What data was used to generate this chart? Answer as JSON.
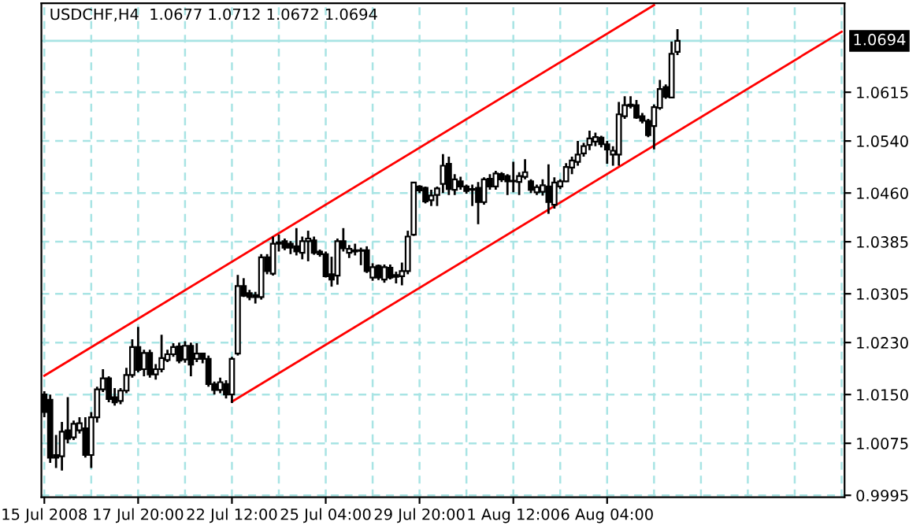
{
  "chart_data": {
    "type": "candlestick",
    "title": "USDCHF,H4  1.0677 1.0712 1.0672 1.0694",
    "categories": [
      "15 Jul 2008",
      null,
      null,
      null,
      null,
      null,
      null,
      null,
      null,
      null,
      null,
      null,
      null,
      null,
      null,
      null,
      "17 Jul 20:00",
      null,
      null,
      null,
      null,
      null,
      null,
      null,
      null,
      null,
      null,
      null,
      null,
      null,
      null,
      null,
      "22 Jul 12:00",
      null,
      null,
      null,
      null,
      null,
      null,
      null,
      null,
      null,
      null,
      null,
      null,
      null,
      null,
      null,
      "25 Jul 04:00",
      null,
      null,
      null,
      null,
      null,
      null,
      null,
      null,
      null,
      null,
      null,
      null,
      null,
      null,
      null,
      "29 Jul 20:00",
      null,
      null,
      null,
      null,
      null,
      null,
      null,
      null,
      null,
      null,
      null,
      null,
      null,
      null,
      null,
      "1 Aug 12:00",
      null,
      null,
      null,
      null,
      null,
      null,
      null,
      null,
      null,
      null,
      null,
      null,
      null,
      null,
      null,
      "6 Aug 04:00",
      null,
      null,
      null,
      null,
      null,
      null,
      null,
      null,
      null,
      null,
      null,
      null,
      null,
      null,
      null,
      null,
      null,
      null,
      null,
      null,
      null,
      null,
      null,
      null,
      null,
      null,
      null,
      null,
      null,
      null,
      null,
      null,
      null,
      null,
      null,
      null,
      null,
      null,
      null,
      null
    ],
    "color": "#000000",
    "ohlc": [
      [
        1.015,
        1.0155,
        1.0115,
        1.0123
      ],
      [
        1.0142,
        1.015,
        1.0045,
        1.0053
      ],
      [
        1.0057,
        1.0088,
        1.0037,
        1.0053
      ],
      [
        1.0055,
        1.0108,
        1.0033,
        1.0093
      ],
      [
        1.0095,
        1.0146,
        1.0075,
        1.0082
      ],
      [
        1.0084,
        1.011,
        1.008,
        1.0105
      ],
      [
        1.0095,
        1.0115,
        1.009,
        1.0106
      ],
      [
        1.0098,
        1.0115,
        1.0053,
        1.0057
      ],
      [
        1.0057,
        1.0123,
        1.0037,
        1.0115
      ],
      [
        1.0115,
        1.0162,
        1.0107,
        1.0158
      ],
      [
        1.0158,
        1.0189,
        1.0154,
        1.0175
      ],
      [
        1.0175,
        1.0178,
        1.0138,
        1.0143
      ],
      [
        1.0146,
        1.016,
        1.0133,
        1.0138
      ],
      [
        1.014,
        1.016,
        1.0135,
        1.0156
      ],
      [
        1.0156,
        1.0191,
        1.0152,
        1.018
      ],
      [
        1.018,
        1.0235,
        1.0176,
        1.0223
      ],
      [
        1.0223,
        1.0254,
        1.0184,
        1.0188
      ],
      [
        1.0189,
        1.0219,
        1.0178,
        1.0214
      ],
      [
        1.0214,
        1.0219,
        1.0176,
        1.0181
      ],
      [
        1.0181,
        1.0197,
        1.0173,
        1.0189
      ],
      [
        1.0189,
        1.0242,
        1.0184,
        1.0206
      ],
      [
        1.0203,
        1.0219,
        1.02,
        1.0212
      ],
      [
        1.0212,
        1.0229,
        1.0208,
        1.0223
      ],
      [
        1.0224,
        1.023,
        1.0198,
        1.0202
      ],
      [
        1.0204,
        1.0232,
        1.0199,
        1.0225
      ],
      [
        1.0225,
        1.023,
        1.0178,
        1.0196
      ],
      [
        1.0205,
        1.0229,
        1.02,
        1.0213
      ],
      [
        1.0213,
        1.0213,
        1.0198,
        1.0205
      ],
      [
        1.0205,
        1.021,
        1.0162,
        1.0166
      ],
      [
        1.0166,
        1.017,
        1.015,
        1.0157
      ],
      [
        1.0157,
        1.0176,
        1.0152,
        1.0169
      ],
      [
        1.0166,
        1.0172,
        1.0144,
        1.015
      ],
      [
        1.015,
        1.0208,
        1.0137,
        1.0205
      ],
      [
        1.0213,
        1.0334,
        1.021,
        1.0317
      ],
      [
        1.0317,
        1.0329,
        1.03,
        1.0302
      ],
      [
        1.0306,
        1.0311,
        1.0295,
        1.03
      ],
      [
        1.0303,
        1.0308,
        1.029,
        1.03
      ],
      [
        1.03,
        1.0366,
        1.0296,
        1.0361
      ],
      [
        1.0361,
        1.0366,
        1.0335,
        1.034
      ],
      [
        1.0336,
        1.0393,
        1.0333,
        1.0382
      ],
      [
        1.0384,
        1.0396,
        1.037,
        1.0382
      ],
      [
        1.0386,
        1.039,
        1.0372,
        1.0376
      ],
      [
        1.0382,
        1.0386,
        1.0366,
        1.0376
      ],
      [
        1.0378,
        1.0406,
        1.0364,
        1.037
      ],
      [
        1.0368,
        1.0393,
        1.0358,
        1.0386
      ],
      [
        1.0386,
        1.0402,
        1.0355,
        1.039
      ],
      [
        1.0387,
        1.0393,
        1.0365,
        1.0368
      ],
      [
        1.037,
        1.0373,
        1.0362,
        1.0366
      ],
      [
        1.0366,
        1.037,
        1.033,
        1.0332
      ],
      [
        1.0335,
        1.0362,
        1.0316,
        1.0327
      ],
      [
        1.0333,
        1.039,
        1.0319,
        1.0386
      ],
      [
        1.0386,
        1.0406,
        1.037,
        1.0375
      ],
      [
        1.0368,
        1.038,
        1.036,
        1.0374
      ],
      [
        1.0372,
        1.0382,
        1.0364,
        1.037
      ],
      [
        1.0372,
        1.0376,
        1.0349,
        1.0371
      ],
      [
        1.0372,
        1.0378,
        1.0337,
        1.034
      ],
      [
        1.033,
        1.0352,
        1.0325,
        1.0346
      ],
      [
        1.0348,
        1.035,
        1.0326,
        1.033
      ],
      [
        1.0327,
        1.035,
        1.0322,
        1.0346
      ],
      [
        1.0345,
        1.035,
        1.0327,
        1.033
      ],
      [
        1.0334,
        1.0339,
        1.0321,
        1.0331
      ],
      [
        1.0332,
        1.0353,
        1.0318,
        1.034
      ],
      [
        1.034,
        1.0402,
        1.0335,
        1.0393
      ],
      [
        1.0396,
        1.0477,
        1.0394,
        1.0476
      ],
      [
        1.047,
        1.0472,
        1.046,
        1.0464
      ],
      [
        1.0468,
        1.047,
        1.0444,
        1.0447
      ],
      [
        1.0449,
        1.0465,
        1.044,
        1.0456
      ],
      [
        1.0457,
        1.047,
        1.044,
        1.0467
      ],
      [
        1.0474,
        1.052,
        1.046,
        1.0502
      ],
      [
        1.0505,
        1.0516,
        1.0457,
        1.0466
      ],
      [
        1.0465,
        1.0489,
        1.0457,
        1.0481
      ],
      [
        1.0478,
        1.0485,
        1.0465,
        1.047
      ],
      [
        1.047,
        1.0473,
        1.0459,
        1.0463
      ],
      [
        1.0466,
        1.0473,
        1.044,
        1.0465
      ],
      [
        1.0468,
        1.0477,
        1.0412,
        1.0446
      ],
      [
        1.0446,
        1.0484,
        1.0442,
        1.0481
      ],
      [
        1.0482,
        1.0489,
        1.0465,
        1.047
      ],
      [
        1.047,
        1.0494,
        1.0465,
        1.049
      ],
      [
        1.0489,
        1.0492,
        1.0477,
        1.0481
      ],
      [
        1.0486,
        1.0489,
        1.0457,
        1.0478
      ],
      [
        1.0479,
        1.0508,
        1.0461,
        1.0478
      ],
      [
        1.0477,
        1.0492,
        1.0457,
        1.0486
      ],
      [
        1.0485,
        1.0512,
        1.0481,
        1.0492
      ],
      [
        1.0478,
        1.0481,
        1.046,
        1.0465
      ],
      [
        1.0461,
        1.0473,
        1.0457,
        1.0469
      ],
      [
        1.0462,
        1.0481,
        1.0456,
        1.0472
      ],
      [
        1.047,
        1.0504,
        1.0428,
        1.0446
      ],
      [
        1.0442,
        1.0484,
        1.0436,
        1.0476
      ],
      [
        1.047,
        1.0481,
        1.0466,
        1.0478
      ],
      [
        1.0478,
        1.0506,
        1.0477,
        1.05
      ],
      [
        1.0499,
        1.0516,
        1.0489,
        1.051
      ],
      [
        1.0508,
        1.054,
        1.0502,
        1.0519
      ],
      [
        1.0521,
        1.0537,
        1.0516,
        1.0532
      ],
      [
        1.0534,
        1.0556,
        1.0526,
        1.0544
      ],
      [
        1.0539,
        1.0553,
        1.0532,
        1.0546
      ],
      [
        1.0545,
        1.0548,
        1.053,
        1.0535
      ],
      [
        1.0535,
        1.054,
        1.0505,
        1.0527
      ],
      [
        1.0519,
        1.0532,
        1.0502,
        1.0525
      ],
      [
        1.0519,
        1.06,
        1.0502,
        1.0581
      ],
      [
        1.0578,
        1.0609,
        1.0574,
        1.0595
      ],
      [
        1.0596,
        1.0609,
        1.059,
        1.0594
      ],
      [
        1.0595,
        1.0603,
        1.0574,
        1.0576
      ],
      [
        1.0578,
        1.0583,
        1.0567,
        1.0571
      ],
      [
        1.0571,
        1.0574,
        1.0546,
        1.0549
      ],
      [
        1.0563,
        1.0596,
        1.0527,
        1.0592
      ],
      [
        1.0591,
        1.0634,
        1.0588,
        1.062
      ],
      [
        1.0623,
        1.0627,
        1.0605,
        1.0608
      ],
      [
        1.0607,
        1.0693,
        1.0606,
        1.0674
      ],
      [
        1.0677,
        1.0712,
        1.0672,
        1.0694
      ],
      null,
      null,
      null,
      null,
      null,
      null,
      null,
      null,
      null,
      null,
      null,
      null,
      null,
      null,
      null,
      null,
      null,
      null,
      null,
      null,
      null,
      null,
      null,
      null,
      null,
      null,
      null,
      null
    ],
    "series": [
      {
        "type": "line",
        "color": "#ff0000",
        "values": [
          1.0179,
          null,
          null,
          null,
          null,
          null,
          null,
          null,
          null,
          null,
          null,
          null,
          null,
          null,
          null,
          null,
          null,
          null,
          null,
          null,
          null,
          null,
          null,
          null,
          null,
          null,
          null,
          null,
          null,
          null,
          null,
          null,
          null,
          null,
          null,
          null,
          null,
          null,
          null,
          null,
          null,
          null,
          null,
          null,
          null,
          null,
          null,
          null,
          null,
          null,
          null,
          null,
          null,
          null,
          null,
          null,
          null,
          null,
          null,
          null,
          null,
          null,
          null,
          null,
          null,
          null,
          null,
          null,
          null,
          null,
          null,
          null,
          null,
          null,
          null,
          null,
          null,
          null,
          null,
          null,
          null,
          null,
          null,
          null,
          null,
          null,
          null,
          null,
          null,
          null,
          null,
          null,
          null,
          null,
          null,
          null,
          null,
          null,
          null,
          null,
          null,
          null,
          null,
          null,
          1.0749,
          null,
          null,
          null,
          null,
          null,
          null,
          null,
          null,
          null,
          null,
          null,
          null,
          null,
          null,
          null,
          null,
          null,
          null,
          null,
          null,
          null,
          null,
          null,
          null,
          null,
          null,
          null,
          null,
          null,
          null,
          null,
          null
        ]
      },
      {
        "type": "line",
        "color": "#ff0000",
        "values": [
          null,
          null,
          null,
          null,
          null,
          null,
          null,
          null,
          null,
          null,
          null,
          null,
          null,
          null,
          null,
          null,
          null,
          null,
          null,
          null,
          null,
          null,
          null,
          null,
          null,
          null,
          null,
          null,
          null,
          null,
          null,
          null,
          1.0139,
          null,
          null,
          null,
          null,
          null,
          null,
          null,
          null,
          null,
          null,
          null,
          null,
          null,
          null,
          null,
          null,
          null,
          null,
          null,
          null,
          null,
          null,
          null,
          null,
          null,
          null,
          null,
          null,
          null,
          null,
          null,
          null,
          null,
          null,
          null,
          null,
          null,
          null,
          null,
          null,
          null,
          null,
          null,
          null,
          null,
          null,
          null,
          null,
          null,
          null,
          null,
          null,
          null,
          null,
          null,
          null,
          null,
          null,
          null,
          null,
          null,
          null,
          null,
          null,
          null,
          null,
          null,
          null,
          null,
          null,
          null,
          null,
          null,
          null,
          null,
          null,
          null,
          null,
          null,
          null,
          null,
          null,
          null,
          null,
          null,
          null,
          null,
          null,
          null,
          null,
          null,
          null,
          null,
          null,
          null,
          null,
          null,
          null,
          null,
          null,
          null,
          null,
          null,
          1.0708
        ]
      }
    ],
    "ylim": [
      0.9992,
      1.0752
    ],
    "yticks": [
      0.9995,
      1.0075,
      {
        "value": 1.015,
        "label": "1.0150"
      },
      {
        "value": 1.023,
        "label": "1.0230"
      },
      1.0305,
      1.0385,
      {
        "value": 1.046,
        "label": "1.0460"
      },
      {
        "value": 1.054,
        "label": "1.0540"
      },
      1.0615
    ],
    "ref_lines": [
      {
        "axis": "y",
        "value": 1.0694,
        "label": "1.0694",
        "color": "#a8e4e4"
      }
    ],
    "grid": true
  }
}
